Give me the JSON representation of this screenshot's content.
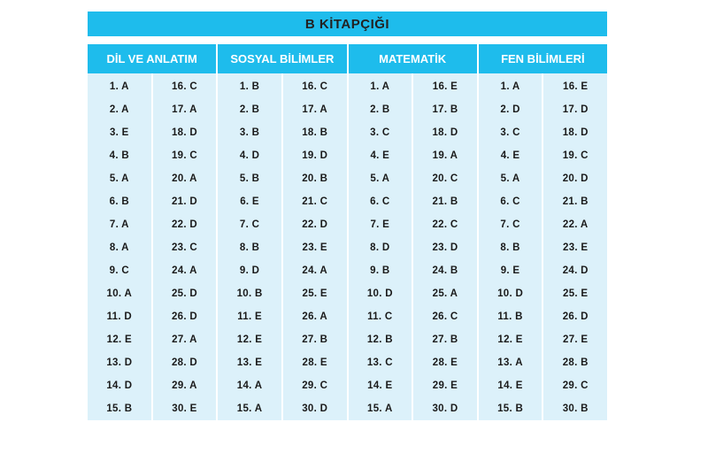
{
  "title": "B KİTAPÇIĞI",
  "sections": [
    {
      "name": "DİL VE ANLATIM",
      "left": [
        "1. A",
        "2. A",
        "3. E",
        "4. B",
        "5. A",
        "6. B",
        "7. A",
        "8. A",
        "9. C",
        "10. A",
        "11. D",
        "12. E",
        "13. D",
        "14. D",
        "15. B"
      ],
      "right": [
        "16. C",
        "17. A",
        "18. D",
        "19. C",
        "20. A",
        "21. D",
        "22. D",
        "23. C",
        "24. A",
        "25. D",
        "26. D",
        "27. A",
        "28. D",
        "29. A",
        "30. E"
      ]
    },
    {
      "name": "SOSYAL BİLİMLER",
      "left": [
        "1. B",
        "2. B",
        "3. B",
        "4. D",
        "5. B",
        "6. E",
        "7. C",
        "8. B",
        "9. D",
        "10. B",
        "11. E",
        "12. E",
        "13. E",
        "14. A",
        "15. A"
      ],
      "right": [
        "16. C",
        "17. A",
        "18. B",
        "19. D",
        "20. B",
        "21. C",
        "22. D",
        "23. E",
        "24. A",
        "25. E",
        "26. A",
        "27. B",
        "28. E",
        "29. C",
        "30. D"
      ]
    },
    {
      "name": "MATEMATİK",
      "left": [
        "1. A",
        "2. B",
        "3. C",
        "4. E",
        "5. A",
        "6. C",
        "7. E",
        "8. D",
        "9. B",
        "10. D",
        "11. C",
        "12. B",
        "13. C",
        "14. E",
        "15. A"
      ],
      "right": [
        "16. E",
        "17. B",
        "18. D",
        "19. A",
        "20. C",
        "21. B",
        "22. C",
        "23. D",
        "24. B",
        "25. A",
        "26. C",
        "27. B",
        "28. E",
        "29. E",
        "30. D"
      ]
    },
    {
      "name": "FEN BİLİMLERİ",
      "left": [
        "1. A",
        "2. D",
        "3. C",
        "4. E",
        "5. A",
        "6. C",
        "7. C",
        "8. B",
        "9. E",
        "10. D",
        "11. B",
        "12. E",
        "13. A",
        "14. E",
        "15. B"
      ],
      "right": [
        "16. E",
        "17. D",
        "18. D",
        "19. C",
        "20. D",
        "21. B",
        "22. A",
        "23. E",
        "24. D",
        "25. E",
        "26. D",
        "27. E",
        "28. B",
        "29. C",
        "30. B"
      ]
    }
  ]
}
